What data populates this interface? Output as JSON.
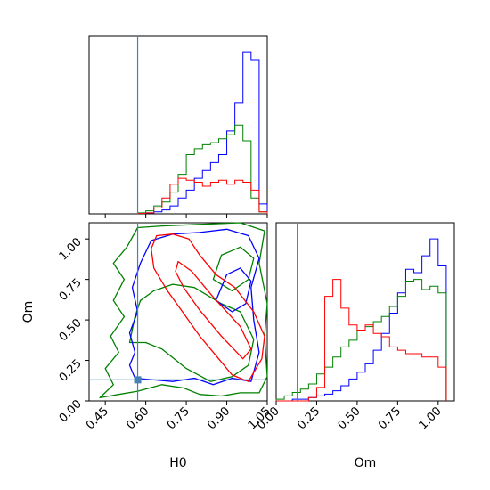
{
  "chart_data": {
    "type": "corner",
    "colors": {
      "blue": "#0000ff",
      "green": "#008000",
      "red": "#ff0000",
      "truth": "#4682b4"
    },
    "truth": {
      "H0": 0.57,
      "Om": 0.13
    },
    "params": [
      "H0",
      "Om"
    ],
    "H0_axis": {
      "label": "H0",
      "range": [
        0.39,
        1.05
      ],
      "ticks": [
        0.45,
        0.6,
        0.75,
        0.9,
        1.05
      ],
      "tick_labels": [
        "0.45",
        "0.60",
        "0.75",
        "0.90",
        "1.05"
      ]
    },
    "Om_axis": {
      "label": "Om",
      "range": [
        0.0,
        1.1
      ],
      "ticks": [
        0.0,
        0.25,
        0.5,
        0.75,
        1.0
      ],
      "tick_labels": [
        "0.00",
        "0.25",
        "0.50",
        "0.75",
        "1.00"
      ]
    },
    "hist_H0": {
      "bin_edges": [
        0.57,
        0.6,
        0.63,
        0.66,
        0.69,
        0.72,
        0.75,
        0.78,
        0.81,
        0.84,
        0.87,
        0.9,
        0.93,
        0.96,
        0.99,
        1.02,
        1.05
      ],
      "series": [
        {
          "color": "blue",
          "values": [
            0.002,
            0.005,
            0.01,
            0.02,
            0.04,
            0.08,
            0.12,
            0.18,
            0.22,
            0.26,
            0.3,
            0.42,
            0.56,
            0.82,
            0.78,
            0.05
          ]
        },
        {
          "color": "green",
          "values": [
            0.005,
            0.015,
            0.04,
            0.06,
            0.11,
            0.2,
            0.3,
            0.33,
            0.35,
            0.36,
            0.38,
            0.4,
            0.45,
            0.37,
            0.08,
            0.01
          ]
        },
        {
          "color": "red",
          "values": [
            0.002,
            0.005,
            0.03,
            0.08,
            0.15,
            0.18,
            0.17,
            0.16,
            0.14,
            0.16,
            0.17,
            0.15,
            0.17,
            0.16,
            0.12,
            0.01
          ]
        }
      ]
    },
    "hist_Om": {
      "bin_edges": [
        0.0,
        0.05,
        0.1,
        0.15,
        0.2,
        0.25,
        0.3,
        0.35,
        0.4,
        0.45,
        0.5,
        0.55,
        0.6,
        0.65,
        0.7,
        0.75,
        0.8,
        0.85,
        0.9,
        0.95,
        1.0,
        1.05
      ],
      "series": [
        {
          "color": "blue",
          "values": [
            0.0,
            0.0,
            0.01,
            0.01,
            0.02,
            0.03,
            0.04,
            0.06,
            0.09,
            0.13,
            0.17,
            0.22,
            0.3,
            0.4,
            0.52,
            0.64,
            0.78,
            0.76,
            0.86,
            0.96,
            0.8
          ]
        },
        {
          "color": "green",
          "values": [
            0.01,
            0.03,
            0.05,
            0.07,
            0.1,
            0.16,
            0.2,
            0.26,
            0.32,
            0.36,
            0.42,
            0.44,
            0.47,
            0.5,
            0.56,
            0.62,
            0.71,
            0.72,
            0.66,
            0.68,
            0.64
          ]
        },
        {
          "color": "red",
          "values": [
            0.0,
            0.0,
            0.0,
            0.0,
            0.02,
            0.08,
            0.62,
            0.72,
            0.55,
            0.45,
            0.42,
            0.45,
            0.4,
            0.38,
            0.32,
            0.3,
            0.28,
            0.28,
            0.26,
            0.26,
            0.2
          ]
        }
      ]
    },
    "contours": [
      {
        "color": "green",
        "levels": [
          [
            [
              0.43,
              0.02
            ],
            [
              0.5,
              0.04
            ],
            [
              0.57,
              0.06
            ],
            [
              0.66,
              0.1
            ],
            [
              0.74,
              0.08
            ],
            [
              0.8,
              0.04
            ],
            [
              0.88,
              0.03
            ],
            [
              0.95,
              0.05
            ],
            [
              1.02,
              0.05
            ],
            [
              1.05,
              0.15
            ],
            [
              1.04,
              0.4
            ],
            [
              1.05,
              0.6
            ],
            [
              1.02,
              0.85
            ],
            [
              1.04,
              1.05
            ],
            [
              0.95,
              1.1
            ],
            [
              0.8,
              1.09
            ],
            [
              0.66,
              1.08
            ],
            [
              0.57,
              1.07
            ],
            [
              0.53,
              0.95
            ],
            [
              0.48,
              0.85
            ],
            [
              0.52,
              0.75
            ],
            [
              0.48,
              0.62
            ],
            [
              0.52,
              0.52
            ],
            [
              0.47,
              0.4
            ],
            [
              0.5,
              0.3
            ],
            [
              0.45,
              0.2
            ],
            [
              0.48,
              0.1
            ]
          ],
          [
            [
              0.54,
              0.36
            ],
            [
              0.56,
              0.52
            ],
            [
              0.58,
              0.62
            ],
            [
              0.63,
              0.68
            ],
            [
              0.7,
              0.72
            ],
            [
              0.78,
              0.7
            ],
            [
              0.88,
              0.6
            ],
            [
              0.95,
              0.55
            ],
            [
              1.0,
              0.38
            ],
            [
              0.98,
              0.22
            ],
            [
              0.92,
              0.15
            ],
            [
              0.84,
              0.12
            ],
            [
              0.75,
              0.2
            ],
            [
              0.66,
              0.32
            ],
            [
              0.6,
              0.36
            ]
          ],
          [
            [
              0.85,
              0.75
            ],
            [
              0.88,
              0.9
            ],
            [
              0.95,
              0.95
            ],
            [
              1.0,
              0.88
            ],
            [
              0.98,
              0.75
            ],
            [
              0.92,
              0.68
            ]
          ]
        ]
      },
      {
        "color": "blue",
        "levels": [
          [
            [
              0.56,
              0.14
            ],
            [
              0.63,
              0.13
            ],
            [
              0.7,
              0.12
            ],
            [
              0.78,
              0.14
            ],
            [
              0.85,
              0.1
            ],
            [
              0.92,
              0.14
            ],
            [
              0.99,
              0.12
            ],
            [
              1.02,
              0.3
            ],
            [
              1.0,
              0.5
            ],
            [
              0.99,
              0.7
            ],
            [
              1.02,
              0.88
            ],
            [
              0.98,
              1.02
            ],
            [
              0.9,
              1.06
            ],
            [
              0.8,
              1.04
            ],
            [
              0.7,
              1.03
            ],
            [
              0.62,
              0.99
            ],
            [
              0.58,
              0.85
            ],
            [
              0.55,
              0.7
            ],
            [
              0.57,
              0.55
            ],
            [
              0.54,
              0.42
            ],
            [
              0.56,
              0.3
            ],
            [
              0.54,
              0.22
            ]
          ],
          [
            [
              0.86,
              0.62
            ],
            [
              0.9,
              0.78
            ],
            [
              0.95,
              0.82
            ],
            [
              0.99,
              0.74
            ],
            [
              0.97,
              0.6
            ],
            [
              0.92,
              0.55
            ]
          ]
        ]
      },
      {
        "color": "red",
        "levels": [
          [
            [
              0.64,
              1.02
            ],
            [
              0.7,
              1.03
            ],
            [
              0.76,
              1.0
            ],
            [
              0.8,
              0.9
            ],
            [
              0.86,
              0.78
            ],
            [
              0.93,
              0.7
            ],
            [
              1.0,
              0.55
            ],
            [
              1.04,
              0.4
            ],
            [
              1.03,
              0.26
            ],
            [
              0.98,
              0.12
            ],
            [
              0.92,
              0.16
            ],
            [
              0.86,
              0.28
            ],
            [
              0.8,
              0.4
            ],
            [
              0.74,
              0.54
            ],
            [
              0.68,
              0.68
            ],
            [
              0.63,
              0.82
            ],
            [
              0.62,
              0.94
            ]
          ],
          [
            [
              0.72,
              0.86
            ],
            [
              0.77,
              0.8
            ],
            [
              0.85,
              0.64
            ],
            [
              0.95,
              0.46
            ],
            [
              0.99,
              0.32
            ],
            [
              0.96,
              0.26
            ],
            [
              0.88,
              0.4
            ],
            [
              0.8,
              0.56
            ],
            [
              0.74,
              0.7
            ],
            [
              0.71,
              0.8
            ]
          ]
        ]
      }
    ]
  }
}
